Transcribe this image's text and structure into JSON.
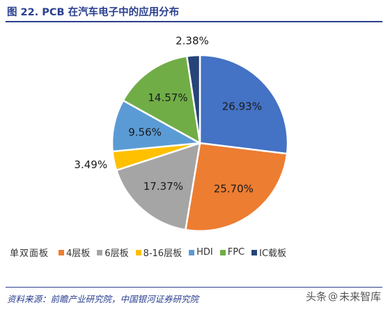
{
  "title": "图 22. PCB 在汽车电子中的应用分布",
  "chart_data": {
    "type": "pie",
    "legend_title": "单双面板",
    "legend_position": "bottom",
    "slices": [
      {
        "label": "单双面板",
        "value": 26.93,
        "display": "26.93%",
        "color": "#4472c4",
        "legend": false
      },
      {
        "label": "4层板",
        "value": 25.7,
        "display": "25.70%",
        "color": "#ed7d31",
        "legend": true
      },
      {
        "label": "6层板",
        "value": 17.37,
        "display": "17.37%",
        "color": "#a5a5a5",
        "legend": true
      },
      {
        "label": "8-16层板",
        "value": 3.49,
        "display": "3.49%",
        "color": "#ffc000",
        "legend": true
      },
      {
        "label": "HDI",
        "value": 9.56,
        "display": "9.56%",
        "color": "#5b9bd5",
        "legend": true
      },
      {
        "label": "FPC",
        "value": 14.57,
        "display": "14.57%",
        "color": "#70ad47",
        "legend": true
      },
      {
        "label": "IC载板",
        "value": 2.38,
        "display": "2.38%",
        "color": "#264478",
        "legend": true
      }
    ]
  },
  "source": "资料来源：前瞻产业研究院，中国银河证券研究院",
  "watermark": {
    "prefix": "头条",
    "icon": "at-icon",
    "icon_glyph": "@",
    "name": "未来智库"
  }
}
